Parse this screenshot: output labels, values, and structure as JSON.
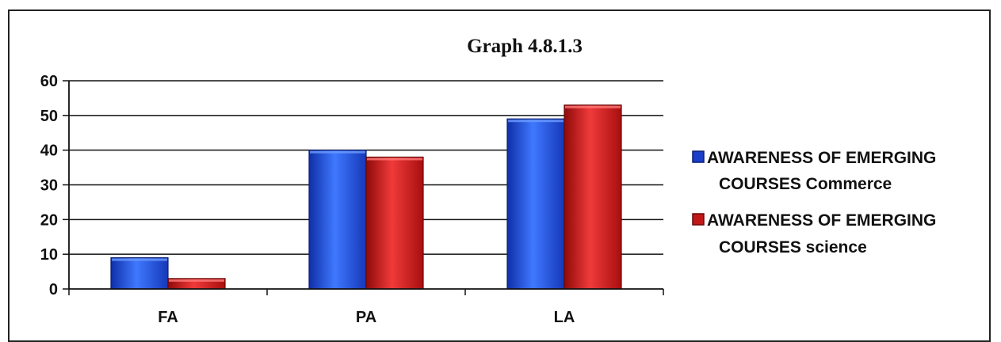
{
  "chart_data": {
    "type": "bar",
    "title": "Graph 4.8.1.3",
    "xlabel": "",
    "ylabel": "",
    "categories": [
      "FA",
      "PA",
      "LA"
    ],
    "series": [
      {
        "name": "AWARENESS OF EMERGING COURSES Commerce",
        "values": [
          9,
          40,
          49
        ],
        "color": "#1f4fe0"
      },
      {
        "name": "AWARENESS OF EMERGING COURSES science",
        "values": [
          3,
          38,
          53
        ],
        "color": "#d01a1a"
      }
    ],
    "ylim": [
      0,
      60
    ],
    "yticks": [
      0,
      10,
      20,
      30,
      40,
      50,
      60
    ],
    "grid": true,
    "legend_position": "right"
  },
  "legend": {
    "items": [
      {
        "line1": "AWARENESS OF EMERGING",
        "line2": "COURSES Commerce",
        "color": "#1f4fe0"
      },
      {
        "line1": "AWARENESS OF EMERGING",
        "line2": "COURSES science",
        "color": "#c01818"
      }
    ]
  }
}
